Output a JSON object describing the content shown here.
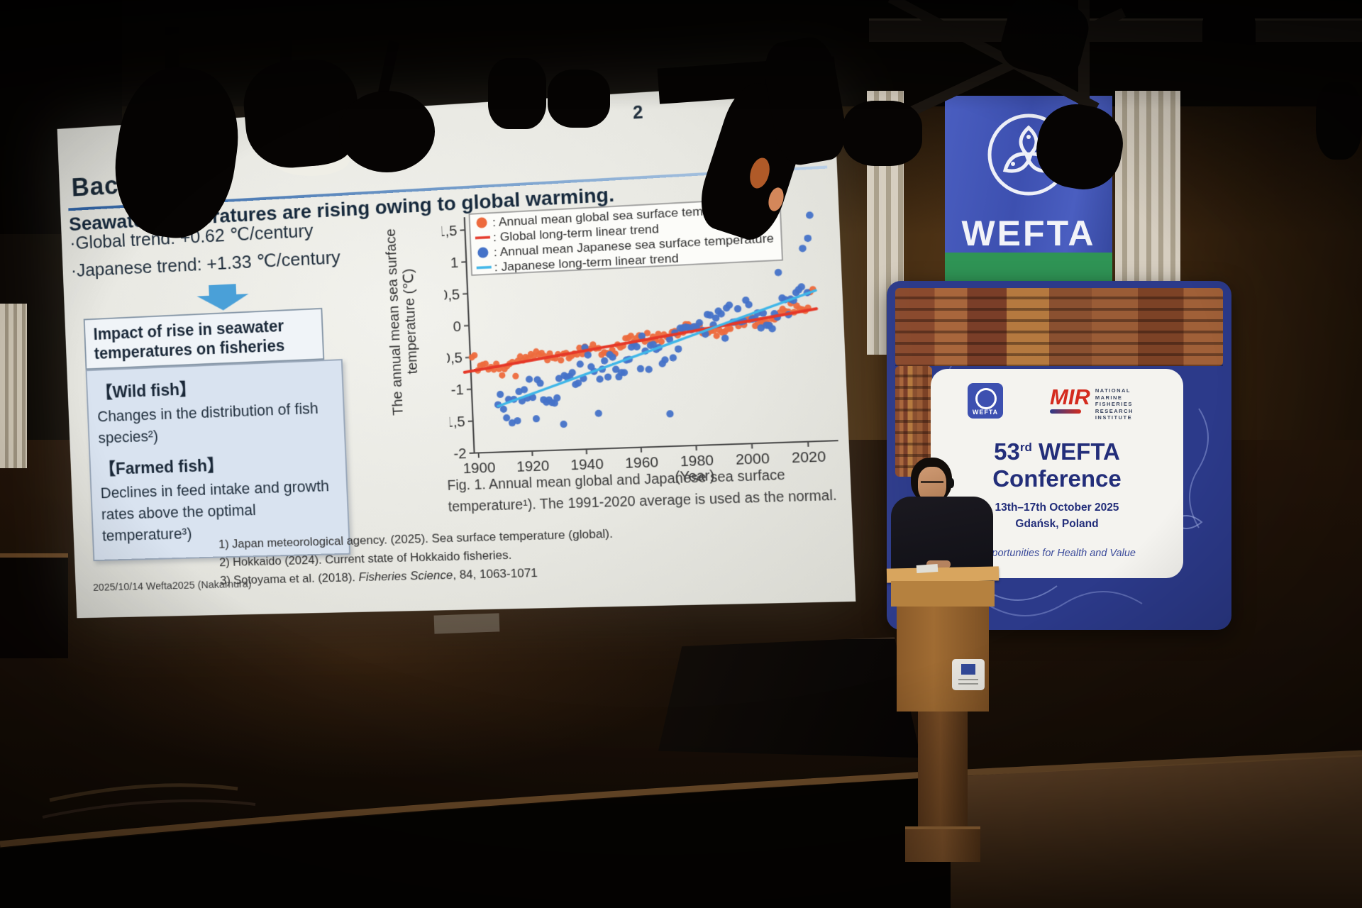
{
  "slide": {
    "page_number": "2",
    "title": "Background",
    "heading": "Seawater temperatures are rising owing to global warming.",
    "bullets": [
      "·Global trend: +0.62 ℃/century",
      "·Japanese trend: +1.33 ℃/century"
    ],
    "impact_box_title": "Impact of rise in seawater temperatures on fisheries",
    "fish_box": {
      "wild_heading": "【Wild fish】",
      "wild_text": "Changes in the distribution of fish species²)",
      "farmed_heading": "【Farmed fish】",
      "farmed_text": "Declines in feed intake and growth rates above the optimal temperature³)"
    },
    "figure_caption": "Fig. 1. Annual mean global and Japanese sea surface temperature¹). The 1991-2020 average is used as the normal.",
    "references": {
      "line1": "1) Japan meteorological agency. (2025). Sea surface temperature (global).",
      "line2": "2) Hokkaido (2024). Current state of Hokkaido fisheries.",
      "line3_pre": "3) Sotoyama et al. (2018). ",
      "line3_italic": "Fisheries Science",
      "line3_post": ", 84, 1063-1071"
    },
    "footer": "2025/10/14 Wefta2025 (Nakamura)"
  },
  "chart_data": {
    "type": "scatter",
    "xlabel": "(Year)",
    "ylabel_line1": "The annual mean sea surface",
    "ylabel_line2": "temperature (℃)",
    "x_ticks": [
      1900,
      1920,
      1940,
      1960,
      1980,
      2000,
      2020
    ],
    "y_ticks": [
      {
        "v": 1.5,
        "label": "1,5"
      },
      {
        "v": 1.0,
        "label": "1"
      },
      {
        "v": 0.5,
        "label": "0,5"
      },
      {
        "v": 0.0,
        "label": "0"
      },
      {
        "v": -0.5,
        "label": "-0,5"
      },
      {
        "v": -1.0,
        "label": "-1"
      },
      {
        "v": -1.5,
        "label": "-1,5"
      },
      {
        "v": -2.0,
        "label": "-2"
      }
    ],
    "xlim": [
      1894,
      2030
    ],
    "ylim": [
      -2.0,
      1.65
    ],
    "grid": false,
    "legend_position": "top",
    "legend": [
      {
        "marker": "dot",
        "color": "#ed6a3d",
        "label": ": Annual mean global sea surface temperature"
      },
      {
        "marker": "line",
        "color": "#e53828",
        "label": ": Global long-term linear trend"
      },
      {
        "marker": "dot",
        "color": "#4472c8",
        "label": ": Annual mean Japanese sea surface temperature"
      },
      {
        "marker": "line",
        "color": "#3fb6e8",
        "label": ": Japanese long-term linear trend"
      }
    ],
    "series": [
      {
        "name": "Annual mean global sea surface temperature",
        "color": "#ed6a3d",
        "marker_r": 4.5,
        "year_start": 1899,
        "year_end": 2024,
        "trend": {
          "x1": 1895,
          "y1": -0.74,
          "x2": 2025,
          "y2": 0.02
        },
        "noise": 0.07,
        "wiggle": 0.05,
        "seed": 7,
        "outliers": [
          [
            1899,
            -0.5
          ],
          [
            1900,
            -0.47
          ],
          [
            1903,
            -0.62
          ],
          [
            1910,
            -0.8
          ],
          [
            1915,
            -0.82
          ],
          [
            1944,
            -0.38
          ],
          [
            1998,
            -0.12
          ],
          [
            2016,
            0.12
          ],
          [
            2023,
            0.28
          ],
          [
            2024,
            0.32
          ]
        ]
      },
      {
        "name": "Annual mean Japanese sea surface temperature",
        "color": "#4472c8",
        "marker_r": 5,
        "year_start": 1908,
        "year_end": 2024,
        "trend": {
          "x1": 1908,
          "y1": -1.28,
          "x2": 2025,
          "y2": 0.3
        },
        "noise": 0.26,
        "wiggle": 0.1,
        "seed": 13,
        "outliers": [
          [
            1913,
            -1.55
          ],
          [
            1922,
            -1.5
          ],
          [
            1932,
            -1.6
          ],
          [
            1945,
            -1.45
          ],
          [
            1971,
            -1.5
          ],
          [
            1990,
            0.05
          ],
          [
            2012,
            0.6
          ],
          [
            2021,
            0.95
          ],
          [
            2023,
            1.1
          ],
          [
            2024,
            1.45
          ]
        ]
      }
    ],
    "trend_lines": [
      {
        "name": "Global long-term linear trend",
        "color": "#e53828",
        "width": 4,
        "x1": 1896,
        "y1": -0.73,
        "x2": 2025,
        "y2": 0.02
      },
      {
        "name": "Japanese long-term linear trend",
        "color": "#3fb6e8",
        "width": 3.5,
        "x1": 1908,
        "y1": -1.28,
        "x2": 2025,
        "y2": 0.3
      }
    ]
  },
  "stage": {
    "flag": {
      "label": "WEFTA"
    },
    "banner": {
      "card": {
        "wefta_logo_label": "WEFTA",
        "mir_logo_label": "MIR",
        "mir_org_lines": [
          "NATIONAL",
          "MARINE",
          "FISHERIES",
          "RESEARCH",
          "INSTITUTE"
        ],
        "title_num": "53",
        "title_ord": "rd",
        "title_rest": " WEFTA",
        "title_line2": "Conference",
        "dates": "13th–17th October 2025",
        "location": "Gdańsk, Poland",
        "tagline": "Opportunities for Health and Value"
      }
    }
  },
  "colors": {
    "slide_rule_blue": "#2f62a4",
    "arrow_blue": "#4aa0d8",
    "global_dot_orange": "#ed6a3d",
    "global_trend_red": "#e53828",
    "japan_dot_blue": "#4472c8",
    "japan_trend_cyan": "#3fb6e8",
    "banner_blue": "#2c3a8a",
    "flag_blue": "#4a5ec0",
    "flag_green": "#2f9455",
    "mir_red": "#d42b1e",
    "card_navy": "#232e7a",
    "podium_wood": "#a06c33"
  }
}
